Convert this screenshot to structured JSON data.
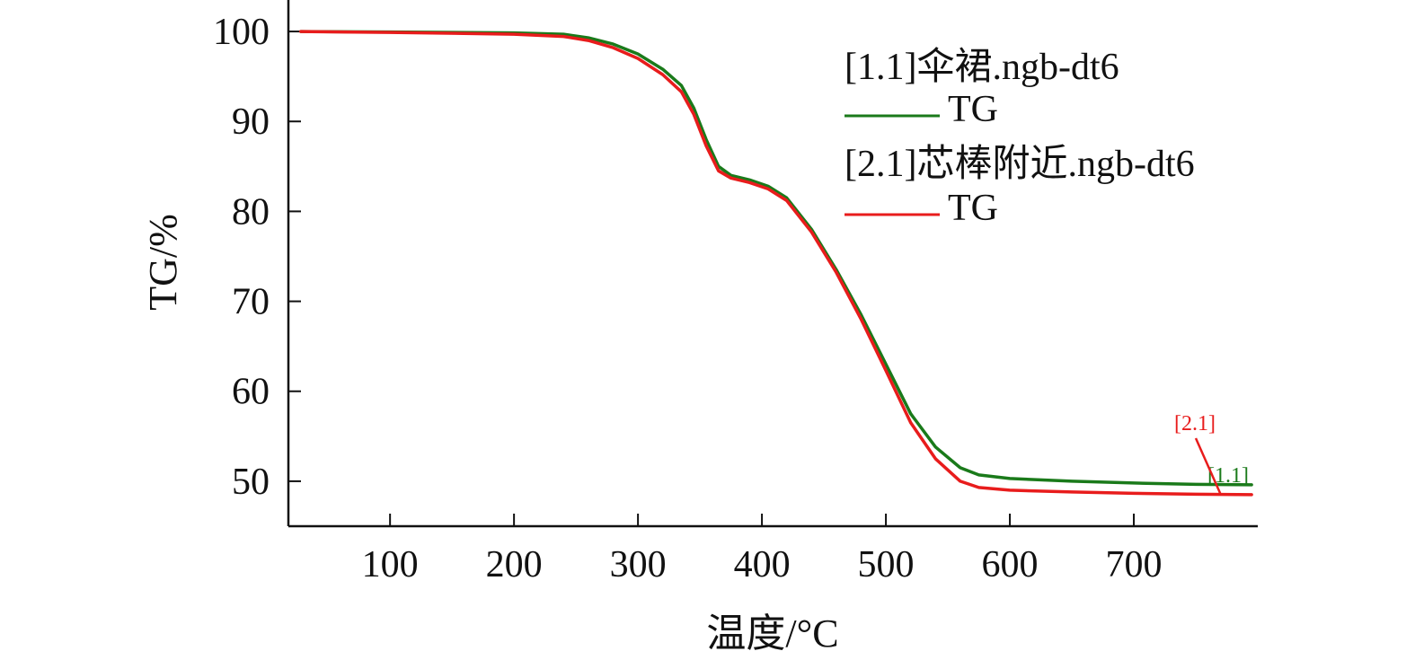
{
  "chart_data": {
    "type": "line",
    "title": "",
    "xlabel": "温度/°C",
    "ylabel": "TG/%",
    "xlim": [
      18,
      800
    ],
    "ylim": [
      45,
      103.5
    ],
    "xticks": [
      100,
      200,
      300,
      400,
      500,
      600,
      700
    ],
    "yticks": [
      50,
      60,
      70,
      80,
      90,
      100
    ],
    "grid": false,
    "legend_position": "top-right",
    "series": [
      {
        "name": "[1.1]伞裙.ngb-dt6",
        "legend_sub": "TG",
        "tag": "[1.1]",
        "color": "#1a7a1a",
        "x": [
          28,
          100,
          200,
          240,
          260,
          280,
          300,
          320,
          335,
          345,
          355,
          365,
          375,
          390,
          405,
          420,
          440,
          460,
          480,
          500,
          520,
          540,
          560,
          575,
          600,
          650,
          700,
          750,
          795
        ],
        "y": [
          100.0,
          99.95,
          99.85,
          99.7,
          99.3,
          98.6,
          97.5,
          95.8,
          94.0,
          91.5,
          88.0,
          85.0,
          84.0,
          83.5,
          82.8,
          81.5,
          78.0,
          73.5,
          68.5,
          63.0,
          57.5,
          53.8,
          51.5,
          50.7,
          50.3,
          50.0,
          49.8,
          49.65,
          49.6
        ]
      },
      {
        "name": "[2.1]芯棒附近.ngb-dt6",
        "legend_sub": "TG",
        "tag": "[2.1]",
        "color": "#e81c1c",
        "x": [
          28,
          100,
          200,
          240,
          260,
          280,
          300,
          320,
          335,
          345,
          355,
          365,
          375,
          390,
          405,
          420,
          440,
          460,
          480,
          500,
          520,
          540,
          560,
          575,
          600,
          650,
          700,
          750,
          795
        ],
        "y": [
          100.0,
          99.9,
          99.7,
          99.45,
          99.0,
          98.2,
          97.0,
          95.2,
          93.3,
          90.8,
          87.3,
          84.5,
          83.7,
          83.2,
          82.5,
          81.2,
          77.7,
          73.2,
          68.0,
          62.3,
          56.5,
          52.5,
          50.0,
          49.3,
          49.0,
          48.8,
          48.65,
          48.55,
          48.5
        ]
      }
    ]
  }
}
